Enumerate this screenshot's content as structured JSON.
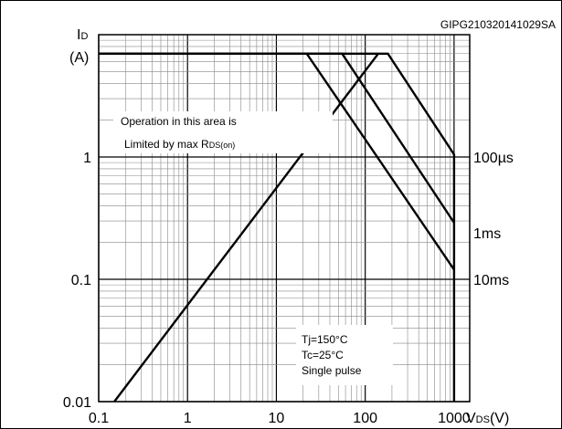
{
  "figure_code": "GIPG210320141029SA",
  "y_label_top": "ID",
  "y_label_unit": "(A)",
  "x_label": "VDS(V)",
  "chart_data": {
    "type": "line",
    "x_scale": "log",
    "y_scale": "log",
    "xlim": [
      0.1,
      1500
    ],
    "ylim": [
      0.01,
      10
    ],
    "xticks": [
      0.1,
      1,
      10,
      100,
      1000
    ],
    "xtick_labels": [
      "0.1",
      "1",
      "10",
      "100",
      "1000"
    ],
    "yticks": [
      0.01,
      0.1,
      1
    ],
    "ytick_labels": [
      "0.01",
      "0.1",
      "1"
    ],
    "xlabel": "VDS(V)",
    "ylabel": "ID (A)",
    "grid": true,
    "series": [
      {
        "name": "Limited by max RDS(on)",
        "x": [
          0.15,
          140
        ],
        "y": [
          0.01,
          7
        ]
      },
      {
        "name": "100µs",
        "x": [
          0.1,
          180,
          1000,
          1000
        ],
        "y": [
          7,
          7,
          1.05,
          0.01
        ]
      },
      {
        "name": "1ms",
        "x": [
          0.1,
          55,
          1000
        ],
        "y": [
          7,
          7,
          0.29
        ]
      },
      {
        "name": "10ms",
        "x": [
          0.1,
          22,
          1000
        ],
        "y": [
          7,
          7,
          0.12
        ]
      }
    ],
    "series_labels": [
      "100µs",
      "1ms",
      "10ms"
    ],
    "annotations": {
      "rdson_line1": "Operation in this area is",
      "rdson_line2_prefix": "Limited by max R",
      "rdson_line2_sub": "DS(on)",
      "conditions": [
        "Tj=150°C",
        "Tc=25°C",
        "Single pulse"
      ]
    }
  }
}
